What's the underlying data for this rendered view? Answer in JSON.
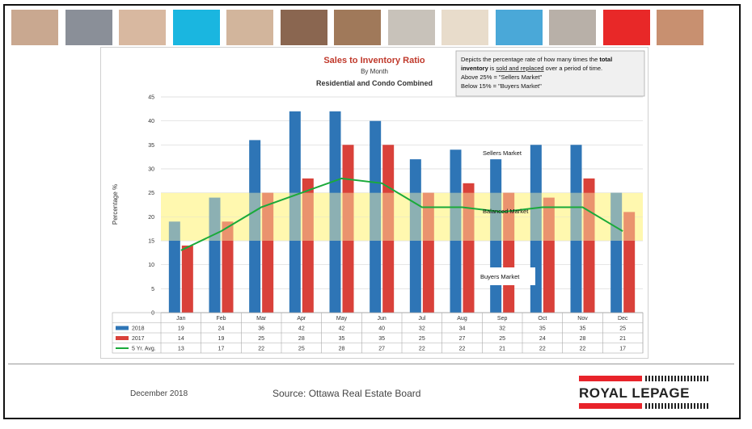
{
  "chart_data": {
    "type": "bar",
    "title": "Sales to Inventory Ratio",
    "subtitle": "By Month",
    "subtitle2": "Residential and Condo Combined",
    "ylabel": "Percentage %",
    "ylim": [
      0,
      45
    ],
    "yticks": [
      0,
      5,
      10,
      15,
      20,
      25,
      30,
      35,
      40,
      45
    ],
    "grid": true,
    "categories": [
      "Jan",
      "Feb",
      "Mar",
      "Apr",
      "May",
      "Jun",
      "Jul",
      "Aug",
      "Sep",
      "Oct",
      "Nov",
      "Dec"
    ],
    "series": [
      {
        "name": "2018",
        "type": "bar",
        "color": "#2e75b6",
        "values": [
          19,
          24,
          36,
          42,
          42,
          40,
          32,
          34,
          32,
          35,
          35,
          25
        ]
      },
      {
        "name": "2017",
        "type": "bar",
        "color": "#d9413a",
        "values": [
          14,
          19,
          25,
          28,
          35,
          35,
          25,
          27,
          25,
          24,
          28,
          21
        ]
      },
      {
        "name": "5 Yr. Avg.",
        "type": "line",
        "color": "#1aaa3a",
        "values": [
          13,
          17,
          22,
          25,
          28,
          27,
          22,
          22,
          21,
          22,
          22,
          17
        ]
      }
    ],
    "band": {
      "from": 15,
      "to": 25,
      "color": "#fff8b0"
    },
    "annotations": {
      "sellers": "Sellers Market",
      "balanced": "Balanced Market",
      "buyers": "Buyers Market"
    },
    "note": {
      "line1_pre": "Depicts the percentage rate of how many times the ",
      "line1_bold": "total",
      "line2_bold1": "inventory",
      "line2_mid": " is ",
      "line2_underline": "sold and replaced",
      "line2_post": " over a period of time.",
      "line3": "Above 25% = \"Sellers Market\"",
      "line4": "Below 15% = \"Buyers Market\""
    },
    "legend_placement": "table-below"
  },
  "footer": {
    "date": "December 2018",
    "source": "Source: Ottawa Real Estate Board",
    "logo": "ROYAL LEPAGE"
  },
  "photos": [
    {
      "name": "family-photo",
      "color": "#c9a890"
    },
    {
      "name": "phone-photo",
      "color": "#8a8f98"
    },
    {
      "name": "couple-photo",
      "color": "#d8b8a0"
    },
    {
      "name": "cyan-tile",
      "color": "#1ab6e0"
    },
    {
      "name": "woman-phone-photo",
      "color": "#d2b59c"
    },
    {
      "name": "couple-smile-photo",
      "color": "#8a6650"
    },
    {
      "name": "house-photo",
      "color": "#a0795a"
    },
    {
      "name": "signing-photo",
      "color": "#c8c2ba"
    },
    {
      "name": "beige-tile",
      "color": "#e8dccb"
    },
    {
      "name": "pool-photo",
      "color": "#4aa8d8"
    },
    {
      "name": "meeting-photo",
      "color": "#b8b0a8"
    },
    {
      "name": "red-tile",
      "color": "#e82828"
    },
    {
      "name": "kids-photo",
      "color": "#c89070"
    }
  ]
}
